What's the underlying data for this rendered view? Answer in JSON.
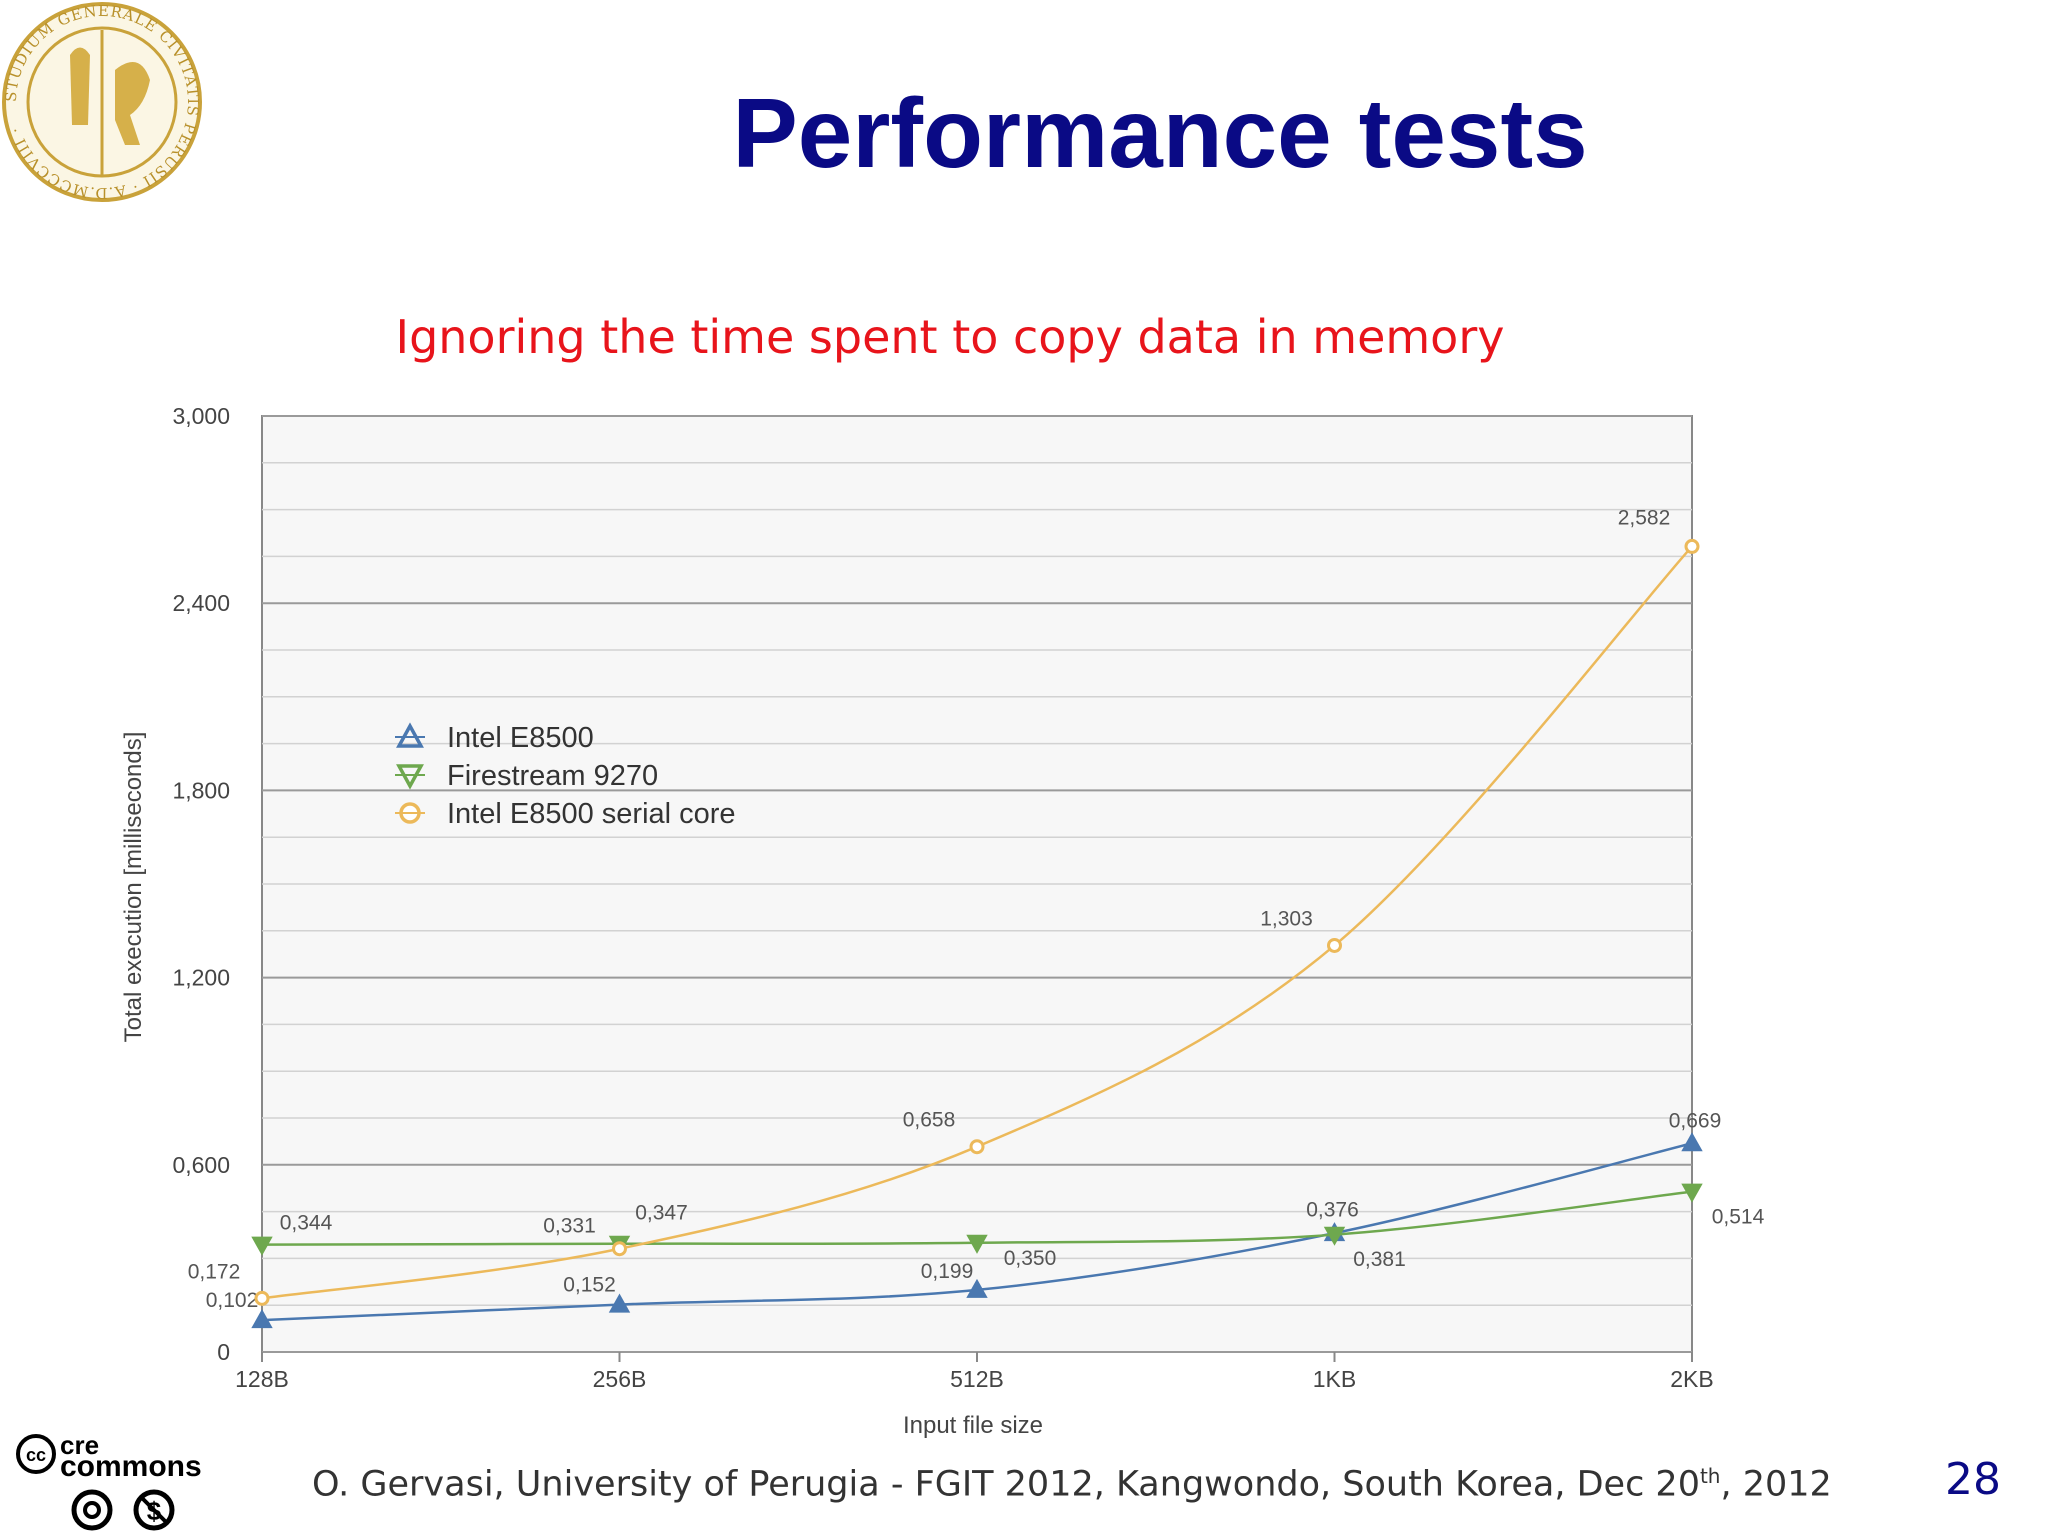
{
  "slide": {
    "title": "Performance tests",
    "subtitle": "Ignoring the time spent  to copy data in memory",
    "footer": {
      "text_before": "O. Gervasi, University of Perugia -  FGIT 2012, Kangwondo, South Korea, Dec 20",
      "superscript": "th",
      "text_after": ", 2012"
    },
    "page_number": "28",
    "seal_text": "STUDIUM GENERALE CIVITATIS PERUSII A.D.MCCCVIII",
    "cc_logo_text": "creative commons"
  },
  "colors": {
    "title": "#0a0a85",
    "subtitle": "#e8141b",
    "intel": "#4a78b0",
    "firestream": "#6ea84e",
    "serial": "#ecb95a"
  },
  "chart_data": {
    "type": "line",
    "xlabel": "Input file size",
    "ylabel": "Total execution [milliseconds]",
    "categories": [
      "128B",
      "256B",
      "512B",
      "1KB",
      "2KB"
    ],
    "ylim": [
      0,
      3.0
    ],
    "yticks": [
      0,
      0.6,
      1.2,
      1.8,
      2.4,
      3.0
    ],
    "ytick_labels": [
      "0",
      "0,600",
      "1,200",
      "1,800",
      "2,400",
      "3,000"
    ],
    "grid": true,
    "legend_position": "upper-left",
    "series": [
      {
        "name": "Intel E8500",
        "marker": "triangle-up",
        "values": [
          0.102,
          0.152,
          0.199,
          0.381,
          0.669
        ],
        "labels": [
          "0,102",
          "0,152",
          "0,199",
          "0,381",
          "0,669"
        ]
      },
      {
        "name": "Firestream 9270",
        "marker": "triangle-down",
        "values": [
          0.344,
          0.347,
          0.35,
          0.376,
          0.514
        ],
        "labels": [
          "0,344",
          "0,347",
          "0,350",
          "0,376",
          "0,514"
        ]
      },
      {
        "name": "Intel E8500 serial core",
        "marker": "circle",
        "values": [
          0.172,
          0.331,
          0.658,
          1.303,
          2.582
        ],
        "labels": [
          "0,172",
          "0,331",
          "0,658",
          "1,303",
          "2,582"
        ]
      }
    ]
  }
}
